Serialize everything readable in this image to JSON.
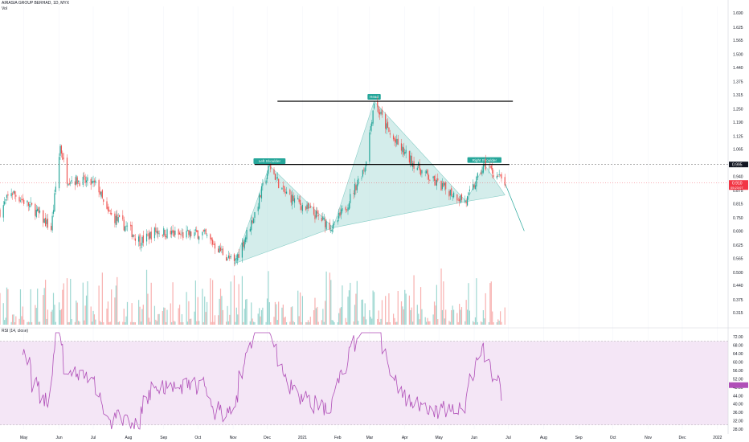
{
  "header": {
    "symbol_line": "AIRASIA GROUP BERHAD, 1D, MYX",
    "volume_label": "Vol"
  },
  "rsi": {
    "label": "RSI (14, close)",
    "axis_ticks": [
      "72.00",
      "68.00",
      "64.00",
      "60.00",
      "56.00",
      "52.00",
      "48.00",
      "44.00",
      "40.00",
      "36.00",
      "32.00",
      "28.00"
    ]
  },
  "colors": {
    "up": "#26a69a",
    "down": "#ef5350",
    "pattern_fill": "#b2dfdb",
    "pattern_stroke": "#26a69a",
    "rsi_line": "#b04fb8",
    "rsi_band": "#f3e5f5",
    "last_price": "#f23645",
    "level_line": "#000000"
  },
  "chart_data": {
    "type": "candlestick",
    "title": "AIRASIA GROUP BERHAD, 1D, MYX",
    "price_axis_ticks": [
      "1.690",
      "1.625",
      "1.565",
      "1.500",
      "1.440",
      "1.375",
      "1.315",
      "1.250",
      "1.190",
      "1.125",
      "1.065",
      "0.995",
      "0.940",
      "0.875",
      "0.815",
      "0.750",
      "0.690",
      "0.625",
      "0.565",
      "0.500",
      "0.440",
      "0.375",
      "0.315"
    ],
    "ylim": [
      0.26,
      1.72
    ],
    "x_axis_labels": [
      "May",
      "Jun",
      "Jul",
      "Aug",
      "Sep",
      "Oct",
      "Nov",
      "Dec",
      "2021",
      "Feb",
      "Mar",
      "Apr",
      "May",
      "Jun",
      "Jul",
      "Aug",
      "Sep",
      "Oct",
      "Nov",
      "Dec",
      "2022"
    ],
    "last_price_tag": "0.910",
    "last_price": 0.91,
    "last_price_subtag": "05:23:07",
    "level_tag": "0.995",
    "neckline_level": 0.995,
    "head_level": 1.285,
    "annotations": [
      "Left Shoulder",
      "Head",
      "Right Shoulder"
    ],
    "pattern_points": [
      {
        "date": "2020-11-02",
        "price": 0.54
      },
      {
        "date": "2020-12-03",
        "price": 0.99
      },
      {
        "date": "2021-01-28",
        "price": 0.705
      },
      {
        "date": "2021-03-05",
        "price": 1.285
      },
      {
        "date": "2021-05-25",
        "price": 0.825
      },
      {
        "date": "2021-06-10",
        "price": 0.995
      },
      {
        "date": "2021-06-28",
        "price": 0.855
      }
    ],
    "projection": [
      {
        "date": "2021-06-28",
        "price": 0.91
      },
      {
        "date": "2021-07-15",
        "price": 0.69
      }
    ],
    "rsi_ylim": [
      28,
      74
    ],
    "rsi_band": [
      30,
      70
    ],
    "rsi_last": 49
  }
}
